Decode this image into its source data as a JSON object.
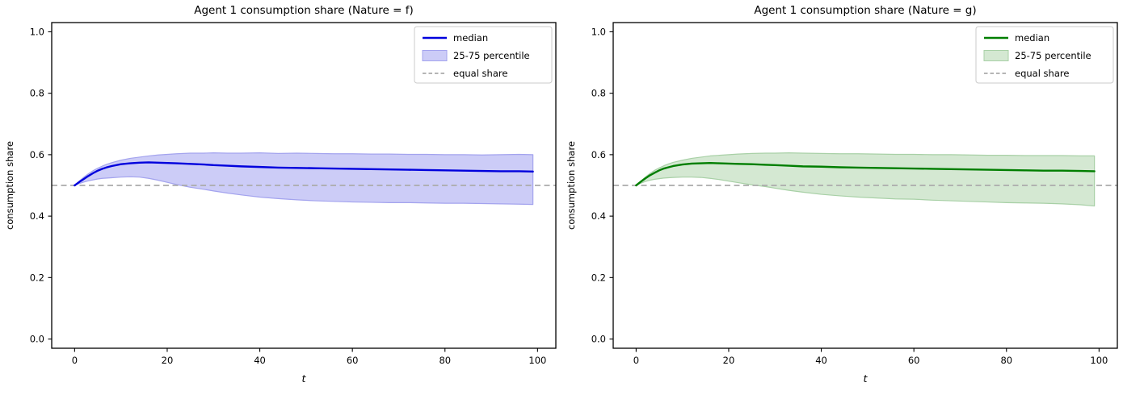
{
  "figure": {
    "background": "#ffffff"
  },
  "chart_data": [
    {
      "type": "line",
      "title": "Agent 1 consumption share (Nature = f)",
      "xlabel": "t",
      "ylabel": "consumption share",
      "xlim": [
        -4.95,
        103.95
      ],
      "ylim": [
        -0.03,
        1.03
      ],
      "xtick_values": [
        0,
        20,
        40,
        60,
        80,
        100
      ],
      "xtick_labels": [
        "0",
        "20",
        "40",
        "60",
        "80",
        "100"
      ],
      "ytick_values": [
        0.0,
        0.2,
        0.4,
        0.6,
        0.8,
        1.0
      ],
      "ytick_labels": [
        "0.0",
        "0.2",
        "0.4",
        "0.6",
        "0.8",
        "1.0"
      ],
      "grid": false,
      "legend_position": "upper right",
      "legend": [
        {
          "label": "median",
          "type": "line",
          "color": "#0000dd"
        },
        {
          "label": "25-75 percentile",
          "type": "patch",
          "fill": "#ccccf7",
          "edge": "#a3a3ee"
        },
        {
          "label": "equal share",
          "type": "dashed",
          "color": "#ababab"
        }
      ],
      "equal_share_y": 0.5,
      "colors": {
        "median": "#0000dd",
        "band_fill": "#ccccf7",
        "band_edge": "#a3a3ee",
        "equal_share": "#ababab",
        "spine": "#000000"
      },
      "x": [
        0,
        1,
        2,
        3,
        4,
        5,
        6,
        7,
        8,
        10,
        12,
        14,
        16,
        18,
        20,
        22,
        25,
        28,
        30,
        33,
        36,
        40,
        44,
        48,
        52,
        56,
        60,
        64,
        68,
        72,
        76,
        80,
        84,
        88,
        92,
        96,
        99
      ],
      "series": [
        {
          "name": "median",
          "values": [
            0.5,
            0.511,
            0.521,
            0.531,
            0.54,
            0.548,
            0.554,
            0.559,
            0.563,
            0.569,
            0.572,
            0.574,
            0.575,
            0.574,
            0.573,
            0.572,
            0.57,
            0.568,
            0.566,
            0.564,
            0.562,
            0.56,
            0.558,
            0.557,
            0.556,
            0.555,
            0.554,
            0.553,
            0.552,
            0.551,
            0.55,
            0.549,
            0.548,
            0.547,
            0.546,
            0.546,
            0.545
          ]
        },
        {
          "name": "p75",
          "values": [
            0.5,
            0.514,
            0.527,
            0.538,
            0.548,
            0.556,
            0.563,
            0.569,
            0.574,
            0.582,
            0.588,
            0.592,
            0.596,
            0.599,
            0.601,
            0.603,
            0.605,
            0.605,
            0.606,
            0.605,
            0.605,
            0.606,
            0.604,
            0.605,
            0.604,
            0.603,
            0.603,
            0.602,
            0.602,
            0.601,
            0.601,
            0.6,
            0.6,
            0.599,
            0.6,
            0.601,
            0.6
          ]
        },
        {
          "name": "p25",
          "values": [
            0.5,
            0.506,
            0.511,
            0.515,
            0.518,
            0.521,
            0.523,
            0.524,
            0.525,
            0.527,
            0.528,
            0.527,
            0.523,
            0.517,
            0.51,
            0.503,
            0.494,
            0.487,
            0.482,
            0.475,
            0.469,
            0.462,
            0.457,
            0.453,
            0.45,
            0.448,
            0.446,
            0.445,
            0.444,
            0.444,
            0.443,
            0.442,
            0.442,
            0.441,
            0.44,
            0.439,
            0.438
          ]
        }
      ]
    },
    {
      "type": "line",
      "title": "Agent 1 consumption share (Nature = g)",
      "xlabel": "t",
      "ylabel": "consumption share",
      "xlim": [
        -4.95,
        103.95
      ],
      "ylim": [
        -0.03,
        1.03
      ],
      "xtick_values": [
        0,
        20,
        40,
        60,
        80,
        100
      ],
      "xtick_labels": [
        "0",
        "20",
        "40",
        "60",
        "80",
        "100"
      ],
      "ytick_values": [
        0.0,
        0.2,
        0.4,
        0.6,
        0.8,
        1.0
      ],
      "ytick_labels": [
        "0.0",
        "0.2",
        "0.4",
        "0.6",
        "0.8",
        "1.0"
      ],
      "grid": false,
      "legend_position": "upper right",
      "legend": [
        {
          "label": "median",
          "type": "line",
          "color": "#007e00"
        },
        {
          "label": "25-75 percentile",
          "type": "patch",
          "fill": "#d4e8d2",
          "edge": "#a8d0a6"
        },
        {
          "label": "equal share",
          "type": "dashed",
          "color": "#ababab"
        }
      ],
      "equal_share_y": 0.5,
      "colors": {
        "median": "#007e00",
        "band_fill": "#d4e8d2",
        "band_edge": "#a8d0a6",
        "equal_share": "#ababab",
        "spine": "#000000"
      },
      "x": [
        0,
        1,
        2,
        3,
        4,
        5,
        6,
        7,
        8,
        10,
        12,
        14,
        16,
        18,
        20,
        22,
        25,
        28,
        30,
        33,
        36,
        40,
        44,
        48,
        52,
        56,
        60,
        64,
        68,
        72,
        76,
        80,
        84,
        88,
        92,
        96,
        99
      ],
      "series": [
        {
          "name": "median",
          "values": [
            0.5,
            0.512,
            0.523,
            0.533,
            0.541,
            0.549,
            0.555,
            0.559,
            0.563,
            0.568,
            0.571,
            0.572,
            0.573,
            0.572,
            0.571,
            0.57,
            0.569,
            0.567,
            0.566,
            0.564,
            0.562,
            0.561,
            0.559,
            0.558,
            0.557,
            0.556,
            0.555,
            0.554,
            0.553,
            0.552,
            0.551,
            0.55,
            0.549,
            0.548,
            0.548,
            0.547,
            0.546
          ]
        },
        {
          "name": "p75",
          "values": [
            0.5,
            0.514,
            0.527,
            0.539,
            0.549,
            0.557,
            0.564,
            0.57,
            0.575,
            0.582,
            0.588,
            0.592,
            0.596,
            0.598,
            0.6,
            0.602,
            0.604,
            0.605,
            0.605,
            0.606,
            0.605,
            0.604,
            0.603,
            0.603,
            0.602,
            0.601,
            0.601,
            0.6,
            0.6,
            0.599,
            0.598,
            0.598,
            0.597,
            0.597,
            0.597,
            0.596,
            0.596
          ]
        },
        {
          "name": "p25",
          "values": [
            0.5,
            0.507,
            0.513,
            0.517,
            0.52,
            0.522,
            0.524,
            0.525,
            0.526,
            0.527,
            0.527,
            0.526,
            0.523,
            0.519,
            0.514,
            0.509,
            0.502,
            0.496,
            0.491,
            0.484,
            0.478,
            0.471,
            0.466,
            0.462,
            0.459,
            0.456,
            0.455,
            0.452,
            0.45,
            0.448,
            0.446,
            0.444,
            0.443,
            0.442,
            0.44,
            0.437,
            0.433
          ]
        }
      ]
    }
  ]
}
